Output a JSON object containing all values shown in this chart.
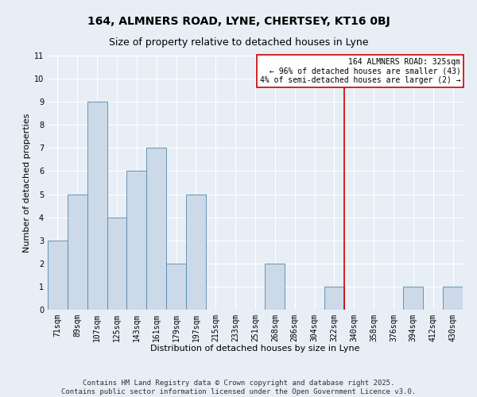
{
  "title": "164, ALMNERS ROAD, LYNE, CHERTSEY, KT16 0BJ",
  "subtitle": "Size of property relative to detached houses in Lyne",
  "xlabel": "Distribution of detached houses by size in Lyne",
  "ylabel": "Number of detached properties",
  "bar_labels": [
    "71sqm",
    "89sqm",
    "107sqm",
    "125sqm",
    "143sqm",
    "161sqm",
    "179sqm",
    "197sqm",
    "215sqm",
    "233sqm",
    "251sqm",
    "268sqm",
    "286sqm",
    "304sqm",
    "322sqm",
    "340sqm",
    "358sqm",
    "376sqm",
    "394sqm",
    "412sqm",
    "430sqm"
  ],
  "bar_values": [
    3,
    5,
    9,
    4,
    6,
    7,
    2,
    5,
    0,
    0,
    0,
    2,
    0,
    0,
    1,
    0,
    0,
    0,
    1,
    0,
    1
  ],
  "bar_color": "#ccd9e8",
  "bar_edge_color": "#5588aa",
  "vline_idx": 14,
  "vline_color": "#cc0000",
  "ylim": [
    0,
    11
  ],
  "yticks": [
    0,
    1,
    2,
    3,
    4,
    5,
    6,
    7,
    8,
    9,
    10,
    11
  ],
  "annotation_title": "164 ALMNERS ROAD: 325sqm",
  "annotation_line1": "← 96% of detached houses are smaller (43)",
  "annotation_line2": "4% of semi-detached houses are larger (2) →",
  "annotation_box_facecolor": "#ffffff",
  "annotation_box_edgecolor": "#cc0000",
  "footer_line1": "Contains HM Land Registry data © Crown copyright and database right 2025.",
  "footer_line2": "Contains public sector information licensed under the Open Government Licence v3.0.",
  "bg_color": "#e8eef5",
  "grid_color": "#ffffff",
  "title_fontsize": 10,
  "subtitle_fontsize": 9,
  "axis_label_fontsize": 8,
  "tick_fontsize": 7,
  "annotation_fontsize": 7,
  "footer_fontsize": 6.5
}
